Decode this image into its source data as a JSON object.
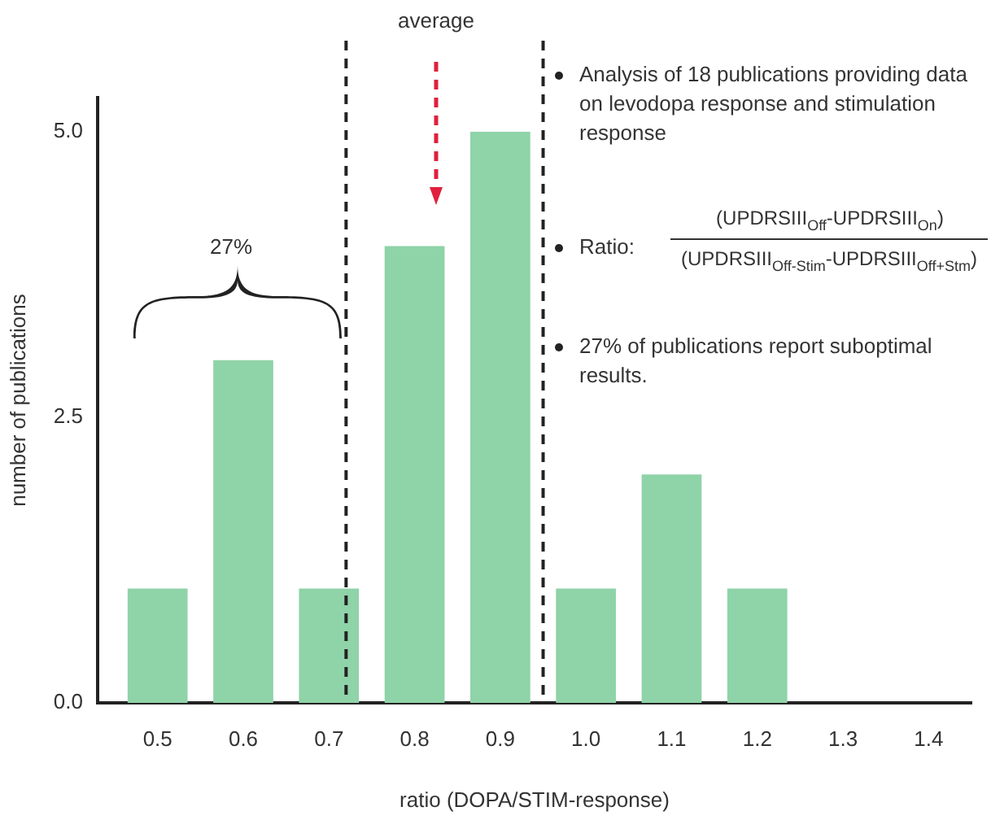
{
  "chart_data": {
    "type": "bar",
    "xlabel": "ratio (DOPA/STIM-response)",
    "ylabel": "number of publications",
    "x": [
      0.5,
      0.6,
      0.7,
      0.8,
      0.9,
      1.0,
      1.1,
      1.2,
      1.3,
      1.4
    ],
    "values": [
      1,
      3,
      1,
      4,
      5,
      1,
      2,
      1,
      0,
      0
    ],
    "color": "#8fd3a8",
    "xlim": [
      0.43,
      1.45
    ],
    "xticks": [
      0.5,
      0.6,
      0.7,
      0.8,
      0.9,
      {
        "value": 1.0,
        "label": "1.0"
      },
      1.1,
      1.2,
      1.3,
      1.4
    ],
    "ylim": [
      0,
      5.3
    ],
    "yticks": [
      {
        "value": 0,
        "label": "0.0"
      },
      2.5,
      {
        "value": 5,
        "label": "5.0"
      }
    ],
    "grid": false,
    "legend": false,
    "ref_lines": [
      {
        "axis": "x",
        "value": 0.72,
        "color": "#222222",
        "line_style": "dashed"
      },
      {
        "axis": "x",
        "value": 0.95,
        "color": "#222222",
        "line_style": "dashed"
      }
    ],
    "annotations": [
      "average",
      "27%",
      "Analysis of 18 publications providing data on levodopa response and stimulation response",
      "Ratio:",
      "(UPDRSIII$_{Off}$-UPDRSIII$_{On}$)",
      "(UPDRSIII$_{Off-Stim}$-UPDRSIII$_{Off+Stm}$)",
      "27% of publications report suboptimal results."
    ]
  }
}
